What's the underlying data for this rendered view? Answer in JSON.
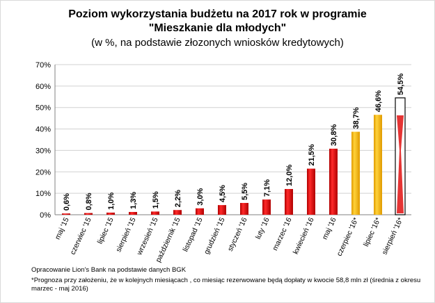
{
  "chart_data": {
    "type": "bar",
    "title": "Poziom wykorzystania budżetu na 2017 rok w programie",
    "title_line2": "\"Mieszkanie dla młodych\"",
    "subtitle": "(w %, na podstawie złozonych wniosków kredytowych)",
    "categories": [
      "maj '15",
      "czerwiec '15",
      "lipiec '15",
      "sierpień '15",
      "wrzesień '15",
      "październik '15",
      "listopad '15",
      "grudzień '15",
      "styczeń '16",
      "luty '16",
      "marzec '16",
      "kwiecień '16",
      "maj '16",
      "czerpiec '16*",
      "lipiec '16*",
      "sierpień '16*"
    ],
    "values": [
      0.6,
      0.8,
      1.0,
      1.3,
      1.5,
      2.2,
      3.0,
      4.5,
      5.5,
      7.1,
      12.0,
      21.5,
      30.8,
      38.7,
      46.6,
      54.5
    ],
    "data_labels": [
      "0,6%",
      "0,8%",
      "1,0%",
      "1,3%",
      "1,5%",
      "2,2%",
      "3,0%",
      "4,5%",
      "5,5%",
      "7,1%",
      "12,0%",
      "21,5%",
      "30,8%",
      "38,7%",
      "46,6%",
      "54,5%"
    ],
    "bar_kind": [
      "actual",
      "actual",
      "actual",
      "actual",
      "actual",
      "actual",
      "actual",
      "actual",
      "actual",
      "actual",
      "actual",
      "actual",
      "actual",
      "forecast",
      "forecast",
      "forecast-hatched"
    ],
    "y_ticks": [
      "0%",
      "10%",
      "20%",
      "30%",
      "40%",
      "50%",
      "60%",
      "70%"
    ],
    "ylim": [
      0,
      70
    ],
    "grid": true,
    "colors": {
      "actual": "#e01010",
      "forecast": "#f5b800",
      "forecast_hatched": "#e01010",
      "grid": "#d0d0d0"
    }
  },
  "notes": {
    "source": "Opracowanie Lion's Bank na podstawie danych BGK",
    "footnote": "*Prognoza przy założeniu, że w kolejnych miesiącach , co miesiąc rezerwowane będą dopłaty w kwocie 58,8 mln zł (średnia z okresu marzec - maj 2016)"
  }
}
